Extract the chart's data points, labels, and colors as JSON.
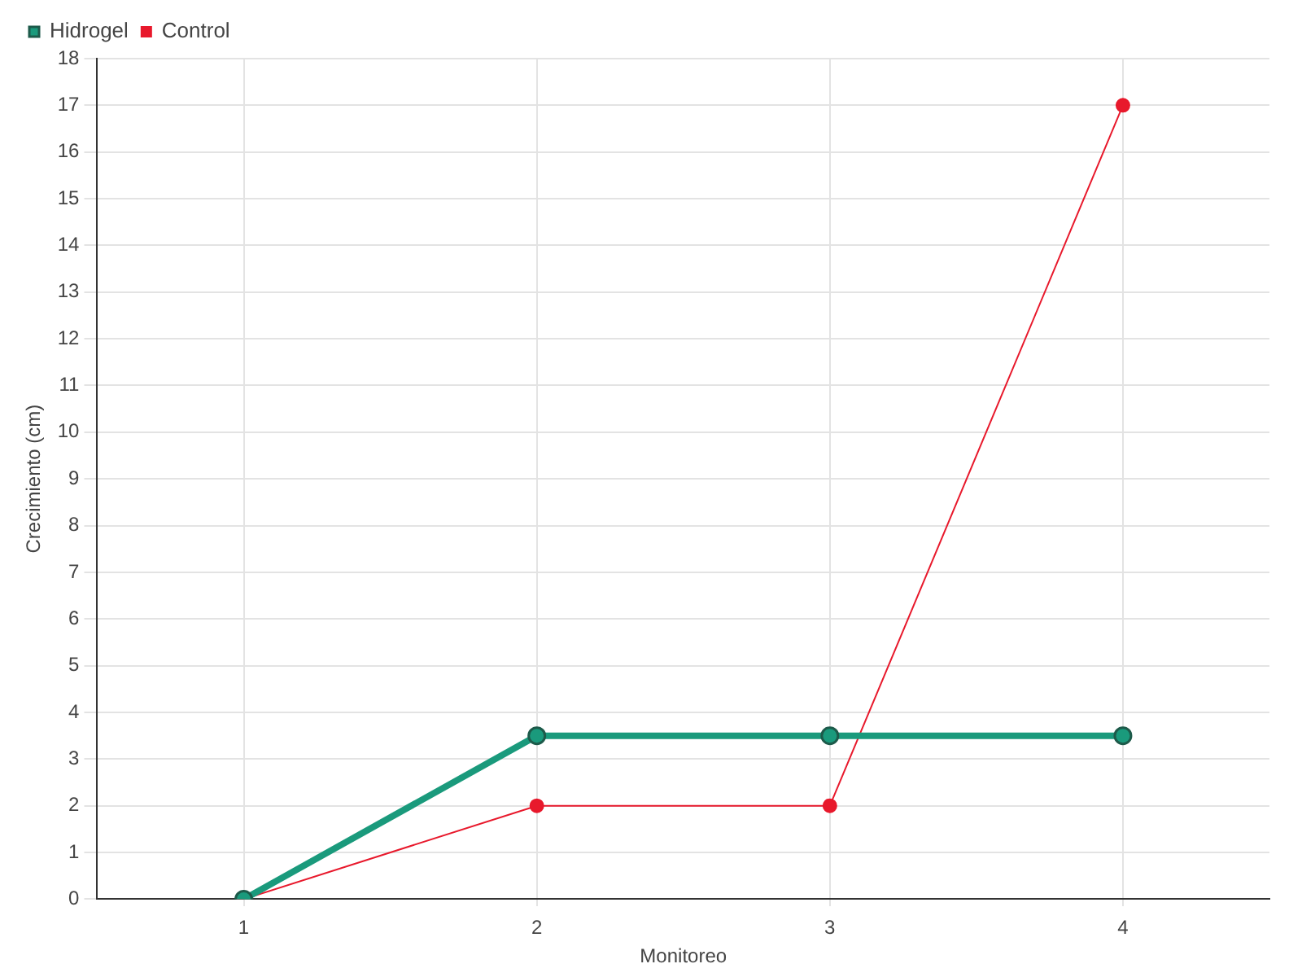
{
  "chart_data": {
    "type": "line",
    "xlabel": "Monitoreo",
    "ylabel": "Crecimiento (cm)",
    "categories": [
      "1",
      "2",
      "3",
      "4"
    ],
    "series": [
      {
        "name": "Hidrogel",
        "color": "#1a9a7c",
        "values": [
          0,
          3.5,
          3.5,
          3.5
        ]
      },
      {
        "name": "Control",
        "color": "#e8192c",
        "values": [
          0,
          2,
          2,
          17
        ]
      }
    ],
    "ylim": [
      0,
      18
    ],
    "yticks": [
      0,
      1,
      2,
      3,
      4,
      5,
      6,
      7,
      8,
      9,
      10,
      11,
      12,
      13,
      14,
      15,
      16,
      17,
      18
    ],
    "grid": true,
    "legend": "top left",
    "marker": "circle",
    "line_style": "solid"
  }
}
